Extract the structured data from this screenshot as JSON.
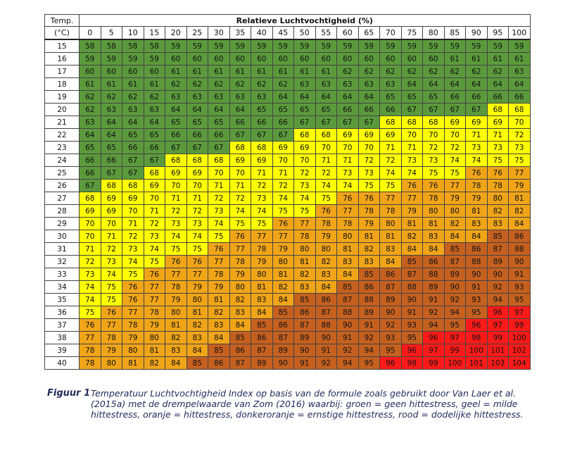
{
  "table": {
    "corner_label": "Temp.",
    "corner_unit": "(°C)",
    "title": "Relatieve Luchtvochtigheid (%)"
  },
  "chart_data": {
    "type": "heatmap",
    "title": "Relatieve Luchtvochtigheid (%)",
    "row_header": "Temp. (°C)",
    "x": [
      0,
      5,
      10,
      15,
      20,
      25,
      30,
      35,
      40,
      45,
      50,
      55,
      60,
      65,
      70,
      75,
      80,
      85,
      90,
      95,
      100
    ],
    "y": [
      15,
      16,
      17,
      18,
      19,
      20,
      21,
      22,
      23,
      24,
      25,
      26,
      27,
      28,
      29,
      30,
      31,
      32,
      33,
      34,
      35,
      36,
      37,
      38,
      39,
      40
    ],
    "values": [
      [
        58,
        58,
        58,
        58,
        59,
        59,
        59,
        59,
        59,
        59,
        59,
        59,
        59,
        59,
        59,
        59,
        59,
        59,
        59,
        59,
        59
      ],
      [
        59,
        59,
        59,
        59,
        60,
        60,
        60,
        60,
        60,
        60,
        60,
        60,
        60,
        60,
        60,
        60,
        60,
        61,
        61,
        61,
        61
      ],
      [
        60,
        60,
        60,
        60,
        61,
        61,
        61,
        61,
        61,
        61,
        61,
        61,
        62,
        62,
        62,
        62,
        62,
        62,
        62,
        62,
        63
      ],
      [
        61,
        61,
        61,
        61,
        62,
        62,
        62,
        62,
        62,
        62,
        63,
        63,
        63,
        63,
        63,
        64,
        64,
        64,
        64,
        64,
        64
      ],
      [
        62,
        62,
        62,
        62,
        63,
        63,
        63,
        63,
        63,
        64,
        64,
        64,
        64,
        64,
        65,
        65,
        65,
        66,
        66,
        66,
        66
      ],
      [
        62,
        63,
        63,
        63,
        64,
        64,
        64,
        64,
        65,
        65,
        65,
        65,
        66,
        66,
        66,
        67,
        67,
        67,
        67,
        68,
        68
      ],
      [
        63,
        64,
        64,
        64,
        65,
        65,
        65,
        66,
        66,
        66,
        67,
        67,
        67,
        67,
        68,
        68,
        68,
        69,
        69,
        69,
        70
      ],
      [
        64,
        64,
        65,
        65,
        66,
        66,
        66,
        67,
        67,
        67,
        68,
        68,
        69,
        69,
        69,
        70,
        70,
        70,
        71,
        71,
        72
      ],
      [
        65,
        65,
        66,
        66,
        67,
        67,
        67,
        68,
        68,
        69,
        69,
        70,
        70,
        70,
        71,
        71,
        72,
        72,
        73,
        73,
        73
      ],
      [
        66,
        66,
        67,
        67,
        68,
        68,
        68,
        69,
        69,
        70,
        70,
        71,
        71,
        72,
        72,
        73,
        73,
        74,
        74,
        75,
        75
      ],
      [
        66,
        67,
        67,
        68,
        69,
        69,
        70,
        70,
        71,
        71,
        72,
        72,
        73,
        73,
        74,
        74,
        75,
        75,
        76,
        76,
        77
      ],
      [
        67,
        68,
        68,
        69,
        70,
        70,
        71,
        71,
        72,
        72,
        73,
        74,
        74,
        75,
        75,
        76,
        76,
        77,
        78,
        78,
        79
      ],
      [
        68,
        69,
        69,
        70,
        71,
        71,
        72,
        72,
        73,
        74,
        74,
        75,
        76,
        76,
        77,
        77,
        78,
        79,
        79,
        80,
        81
      ],
      [
        69,
        69,
        70,
        71,
        72,
        72,
        73,
        74,
        74,
        75,
        75,
        76,
        77,
        78,
        78,
        79,
        80,
        80,
        81,
        82,
        82
      ],
      [
        70,
        70,
        71,
        72,
        73,
        73,
        74,
        75,
        75,
        76,
        77,
        78,
        78,
        79,
        80,
        81,
        81,
        82,
        83,
        83,
        84
      ],
      [
        70,
        71,
        72,
        73,
        74,
        74,
        75,
        76,
        77,
        77,
        78,
        79,
        80,
        81,
        81,
        82,
        83,
        84,
        84,
        85,
        86
      ],
      [
        71,
        72,
        73,
        74,
        75,
        75,
        76,
        77,
        78,
        79,
        80,
        80,
        81,
        82,
        83,
        84,
        84,
        85,
        86,
        87,
        88
      ],
      [
        72,
        73,
        74,
        75,
        76,
        76,
        77,
        78,
        79,
        80,
        81,
        82,
        83,
        83,
        84,
        85,
        86,
        87,
        88,
        89,
        90
      ],
      [
        73,
        74,
        75,
        76,
        77,
        77,
        78,
        79,
        80,
        81,
        82,
        83,
        84,
        85,
        86,
        87,
        88,
        89,
        90,
        90,
        91
      ],
      [
        74,
        75,
        76,
        77,
        78,
        79,
        79,
        80,
        81,
        82,
        83,
        84,
        85,
        86,
        87,
        88,
        89,
        90,
        91,
        92,
        93
      ],
      [
        74,
        75,
        76,
        77,
        79,
        80,
        81,
        82,
        83,
        84,
        85,
        86,
        87,
        88,
        89,
        90,
        91,
        92,
        93,
        94,
        95
      ],
      [
        75,
        76,
        77,
        78,
        80,
        81,
        82,
        83,
        84,
        85,
        86,
        87,
        88,
        89,
        90,
        91,
        92,
        94,
        95,
        96,
        97
      ],
      [
        76,
        77,
        78,
        79,
        81,
        82,
        83,
        84,
        85,
        86,
        87,
        88,
        90,
        91,
        92,
        93,
        94,
        95,
        96,
        97,
        99
      ],
      [
        77,
        78,
        79,
        80,
        82,
        83,
        84,
        85,
        86,
        87,
        89,
        90,
        91,
        92,
        93,
        95,
        96,
        97,
        98,
        99,
        100
      ],
      [
        78,
        79,
        80,
        81,
        83,
        84,
        85,
        86,
        87,
        89,
        90,
        91,
        92,
        94,
        95,
        96,
        97,
        99,
        100,
        101,
        102
      ],
      [
        78,
        80,
        81,
        82,
        84,
        85,
        86,
        87,
        89,
        90,
        91,
        92,
        94,
        95,
        96,
        98,
        99,
        100,
        101,
        103,
        104
      ]
    ],
    "color_thresholds": [
      {
        "min": 0,
        "max": 67,
        "color": "#5b9a3c",
        "meaning": "groen = geen hittestress"
      },
      {
        "min": 68,
        "max": 75,
        "color": "#ffff00",
        "meaning": "geel = milde hittestress"
      },
      {
        "min": 76,
        "max": 84,
        "color": "#f0a418",
        "meaning": "oranje = hittestress"
      },
      {
        "min": 85,
        "max": 95,
        "color": "#c5601f",
        "meaning": "donkeroranje = ernstige hittestress"
      },
      {
        "min": 96,
        "max": 999,
        "color": "#ff1a1a",
        "meaning": "rood = dodelijke hittestress"
      }
    ]
  },
  "caption": {
    "label": "Figuur 1",
    "text": "Temperatuur Luchtvochtigheid Index op basis van de formule zoals gebruikt door Van Laer et al. (2015a) met de drempelwaarde van Zom (2016) waarbij: groen = geen hittestress, geel = milde hittestress, oranje = hittestress, donkeroranje = ernstige hittestress, rood = dodelijke hittestress."
  }
}
